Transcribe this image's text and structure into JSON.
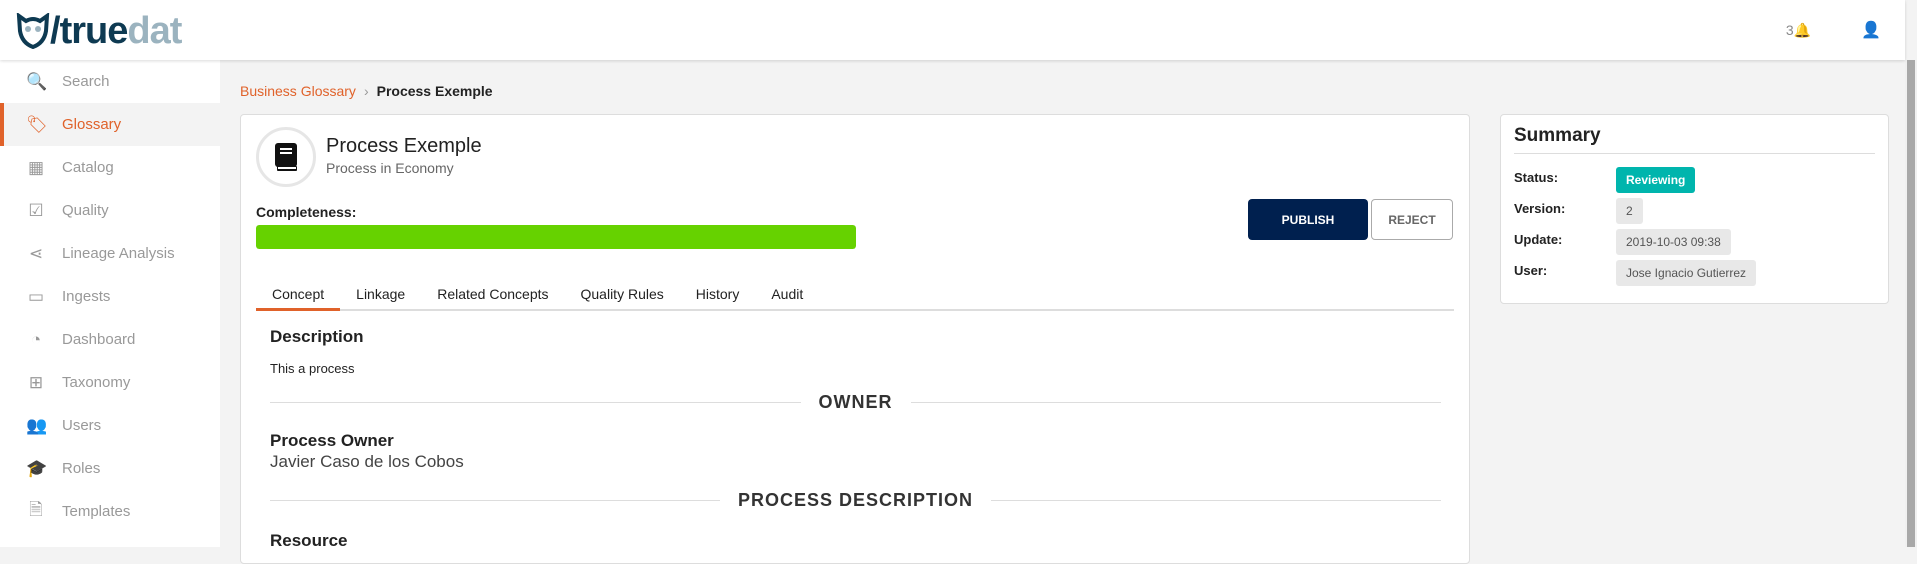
{
  "header": {
    "logo_text_a": "truedat_true",
    "logo_prefix": "/",
    "logo_true": "true",
    "logo_dat": "dat",
    "notifications_count": "3",
    "bell_icon": "bell-icon",
    "user_icon": "user-icon"
  },
  "sidebar": {
    "items": [
      {
        "label": "Search",
        "icon": "search-icon",
        "glyph": "🔍"
      },
      {
        "label": "Glossary",
        "icon": "tags-icon",
        "glyph": "🏷"
      },
      {
        "label": "Catalog",
        "icon": "grid-icon",
        "glyph": "▦"
      },
      {
        "label": "Quality",
        "icon": "check-square-icon",
        "glyph": "☑"
      },
      {
        "label": "Lineage Analysis",
        "icon": "share-icon",
        "glyph": "⋖"
      },
      {
        "label": "Ingests",
        "icon": "hdd-icon",
        "glyph": "▭"
      },
      {
        "label": "Dashboard",
        "icon": "gauge-icon",
        "glyph": "◔"
      },
      {
        "label": "Taxonomy",
        "icon": "sitemap-icon",
        "glyph": "⊞"
      },
      {
        "label": "Users",
        "icon": "users-icon",
        "glyph": "👥"
      },
      {
        "label": "Roles",
        "icon": "graduation-cap-icon",
        "glyph": "🎓"
      },
      {
        "label": "Templates",
        "icon": "file-icon",
        "glyph": "🗎"
      }
    ],
    "active": "Glossary",
    "accent": "#e0622a"
  },
  "breadcrumb": {
    "parent": "Business Glossary",
    "current": "Process Exemple"
  },
  "concept": {
    "title": "Process Exemple",
    "subtitle": "Process in Economy",
    "completeness_label": "Completeness:",
    "completeness_percent": 100,
    "bar_color": "#66d200",
    "publish": "PUBLISH",
    "reject": "REJECT",
    "tabs": [
      "Concept",
      "Linkage",
      "Related Concepts",
      "Quality Rules",
      "History",
      "Audit"
    ],
    "active_tab": "Concept",
    "description_heading": "Description",
    "description": "This a process",
    "owner_section": "OWNER",
    "owner_label": "Process Owner",
    "owner_value": "Javier Caso de los Cobos",
    "process_section": "PROCESS DESCRIPTION",
    "resource_label": "Resource"
  },
  "summary": {
    "title": "Summary",
    "status_label": "Status:",
    "status": "Reviewing",
    "status_color": "#00b5ad",
    "version_label": "Version:",
    "version": "2",
    "update_label": "Update:",
    "update": "2019-10-03 09:38",
    "user_label": "User:",
    "user": "Jose Ignacio Gutierrez"
  }
}
